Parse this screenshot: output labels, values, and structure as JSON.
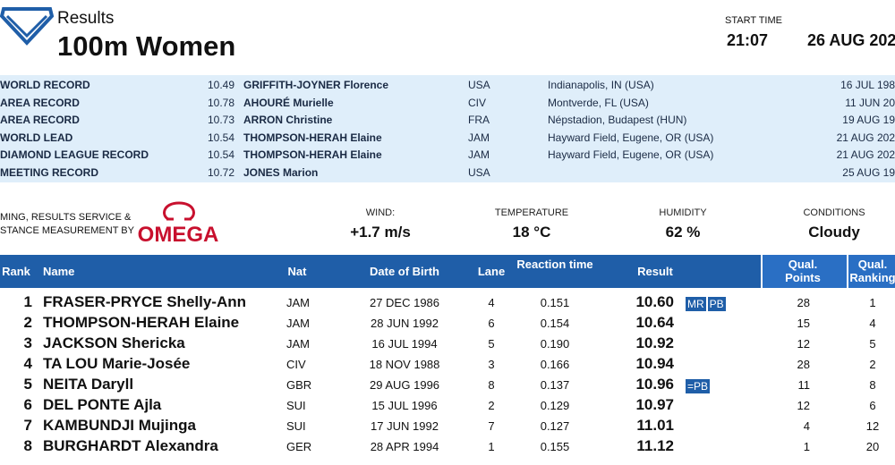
{
  "header": {
    "title": "Results",
    "event": "100m Women",
    "start_time_label": "START TIME",
    "start_time": "21:07",
    "date": "26 AUG 202"
  },
  "records": [
    [
      "WORLD RECORD",
      "10.49",
      "GRIFFITH-JOYNER Florence",
      "USA",
      "Indianapolis, IN (USA)",
      "16 JUL 198"
    ],
    [
      "AREA RECORD",
      "10.78",
      "AHOURÉ Murielle",
      "CIV",
      "Montverde, FL (USA)",
      "11 JUN 20"
    ],
    [
      "AREA RECORD",
      "10.73",
      "ARRON Christine",
      "FRA",
      "Népstadion, Budapest (HUN)",
      "19 AUG 19"
    ],
    [
      "WORLD LEAD",
      "10.54",
      "THOMPSON-HERAH Elaine",
      "JAM",
      "Hayward Field, Eugene, OR (USA)",
      "21 AUG 202"
    ],
    [
      "DIAMOND LEAGUE RECORD",
      "10.54",
      "THOMPSON-HERAH Elaine",
      "JAM",
      "Hayward Field, Eugene, OR (USA)",
      "21 AUG 202"
    ],
    [
      "MEETING RECORD",
      "10.72",
      "JONES Marion",
      "USA",
      "",
      "25 AUG 19"
    ]
  ],
  "timing": {
    "line1": "MING, RESULTS SERVICE &",
    "line2": "STANCE MEASUREMENT BY",
    "brand": "OMEGA"
  },
  "conditions": [
    {
      "label": "WIND:",
      "value": "+1.7 m/s"
    },
    {
      "label": "TEMPERATURE",
      "value": "18 °C"
    },
    {
      "label": "HUMIDITY",
      "value": "62 %"
    },
    {
      "label": "CONDITIONS",
      "value": "Cloudy"
    }
  ],
  "table": {
    "columns": [
      "Rank",
      "Name",
      "Nat",
      "Date of Birth",
      "Lane",
      "Reaction time",
      "Result",
      "Qual. Points",
      "Qual. Ranking"
    ],
    "rows": [
      [
        "1",
        "FRASER-PRYCE Shelly-Ann",
        "JAM",
        "27 DEC 1986",
        "4",
        "0.151",
        "10.60",
        [
          "MR",
          "PB"
        ],
        "28",
        "1"
      ],
      [
        "2",
        "THOMPSON-HERAH Elaine",
        "JAM",
        "28 JUN 1992",
        "6",
        "0.154",
        "10.64",
        [],
        "15",
        "4"
      ],
      [
        "3",
        "JACKSON Shericka",
        "JAM",
        "16 JUL 1994",
        "5",
        "0.190",
        "10.92",
        [],
        "12",
        "5"
      ],
      [
        "4",
        "TA LOU Marie-Josée",
        "CIV",
        "18 NOV 1988",
        "3",
        "0.166",
        "10.94",
        [],
        "28",
        "2"
      ],
      [
        "5",
        "NEITA Daryll",
        "GBR",
        "29 AUG 1996",
        "8",
        "0.137",
        "10.96",
        [
          "=PB"
        ],
        "11",
        "8"
      ],
      [
        "6",
        "DEL PONTE Ajla",
        "SUI",
        "15 JUL 1996",
        "2",
        "0.129",
        "10.97",
        [],
        "12",
        "6"
      ],
      [
        "7",
        "KAMBUNDJI Mujinga",
        "SUI",
        "17 JUN 1992",
        "7",
        "0.127",
        "11.01",
        [],
        "4",
        "12"
      ],
      [
        "8",
        "BURGHARDT Alexandra",
        "GER",
        "28 APR 1994",
        "1",
        "0.155",
        "11.12",
        [],
        "1",
        "20"
      ]
    ]
  }
}
